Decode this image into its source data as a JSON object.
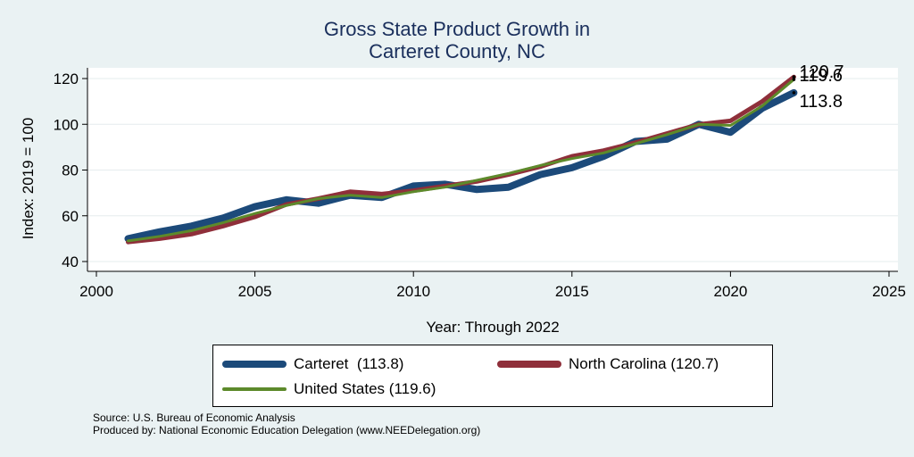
{
  "colors": {
    "background": "#eaf2f3",
    "plot_background": "#ffffff",
    "title": "#1a2f5c",
    "carteret": "#1c4a7a",
    "north_carolina": "#8f2f3a",
    "united_states": "#5d8a2b"
  },
  "chart_data": {
    "type": "line",
    "title": "Gross State Product Growth in\nCarteret County, NC",
    "title_lines": [
      "Gross State Product Growth in",
      "Carteret County, NC"
    ],
    "xlabel": "Year: Through 2022",
    "ylabel": "Index: 2019 = 100",
    "xlim": [
      2000,
      2025
    ],
    "ylim": [
      40,
      120
    ],
    "xticks": [
      2000,
      2005,
      2010,
      2015,
      2020,
      2025
    ],
    "yticks": [
      40,
      60,
      80,
      100,
      120
    ],
    "grid": true,
    "legend_position": "bottom",
    "x": [
      2001,
      2002,
      2003,
      2004,
      2005,
      2006,
      2007,
      2008,
      2009,
      2010,
      2011,
      2012,
      2013,
      2014,
      2015,
      2016,
      2017,
      2018,
      2019,
      2020,
      2021,
      2022
    ],
    "series": [
      {
        "name": "Carteret",
        "legend_label": "Carteret  (113.8)",
        "end_label": "113.8",
        "color": "#1c4a7a",
        "values": [
          50,
          53,
          55.5,
          59,
          64,
          67,
          65.5,
          69,
          68,
          73,
          73.8,
          71.5,
          72.5,
          78,
          81,
          86,
          92.5,
          93.5,
          100,
          96.5,
          107,
          113.8
        ]
      },
      {
        "name": "North Carolina",
        "legend_label": "North Carolina (120.7)",
        "end_label": "120.7",
        "color": "#8f2f3a",
        "values": [
          48.5,
          50,
          52,
          55.5,
          59.5,
          65,
          67.5,
          70.5,
          69.5,
          71,
          73,
          75,
          78,
          81.5,
          86,
          88.5,
          92,
          96,
          100,
          101.5,
          110,
          120.7
        ]
      },
      {
        "name": "United States",
        "legend_label": "United States (119.6)",
        "end_label": "119.6",
        "color": "#5d8a2b",
        "values": [
          49,
          51,
          53.5,
          57,
          61,
          64.5,
          67.5,
          69,
          68,
          70.5,
          72.5,
          75.5,
          78.5,
          82,
          85,
          87.5,
          91.5,
          95.5,
          100,
          99.5,
          108,
          119.6
        ]
      }
    ]
  },
  "footnotes": {
    "source": "Source: U.S. Bureau of Economic Analysis",
    "produced_by": "Produced by: National Economic Education Delegation (www.NEEDelegation.org)"
  }
}
